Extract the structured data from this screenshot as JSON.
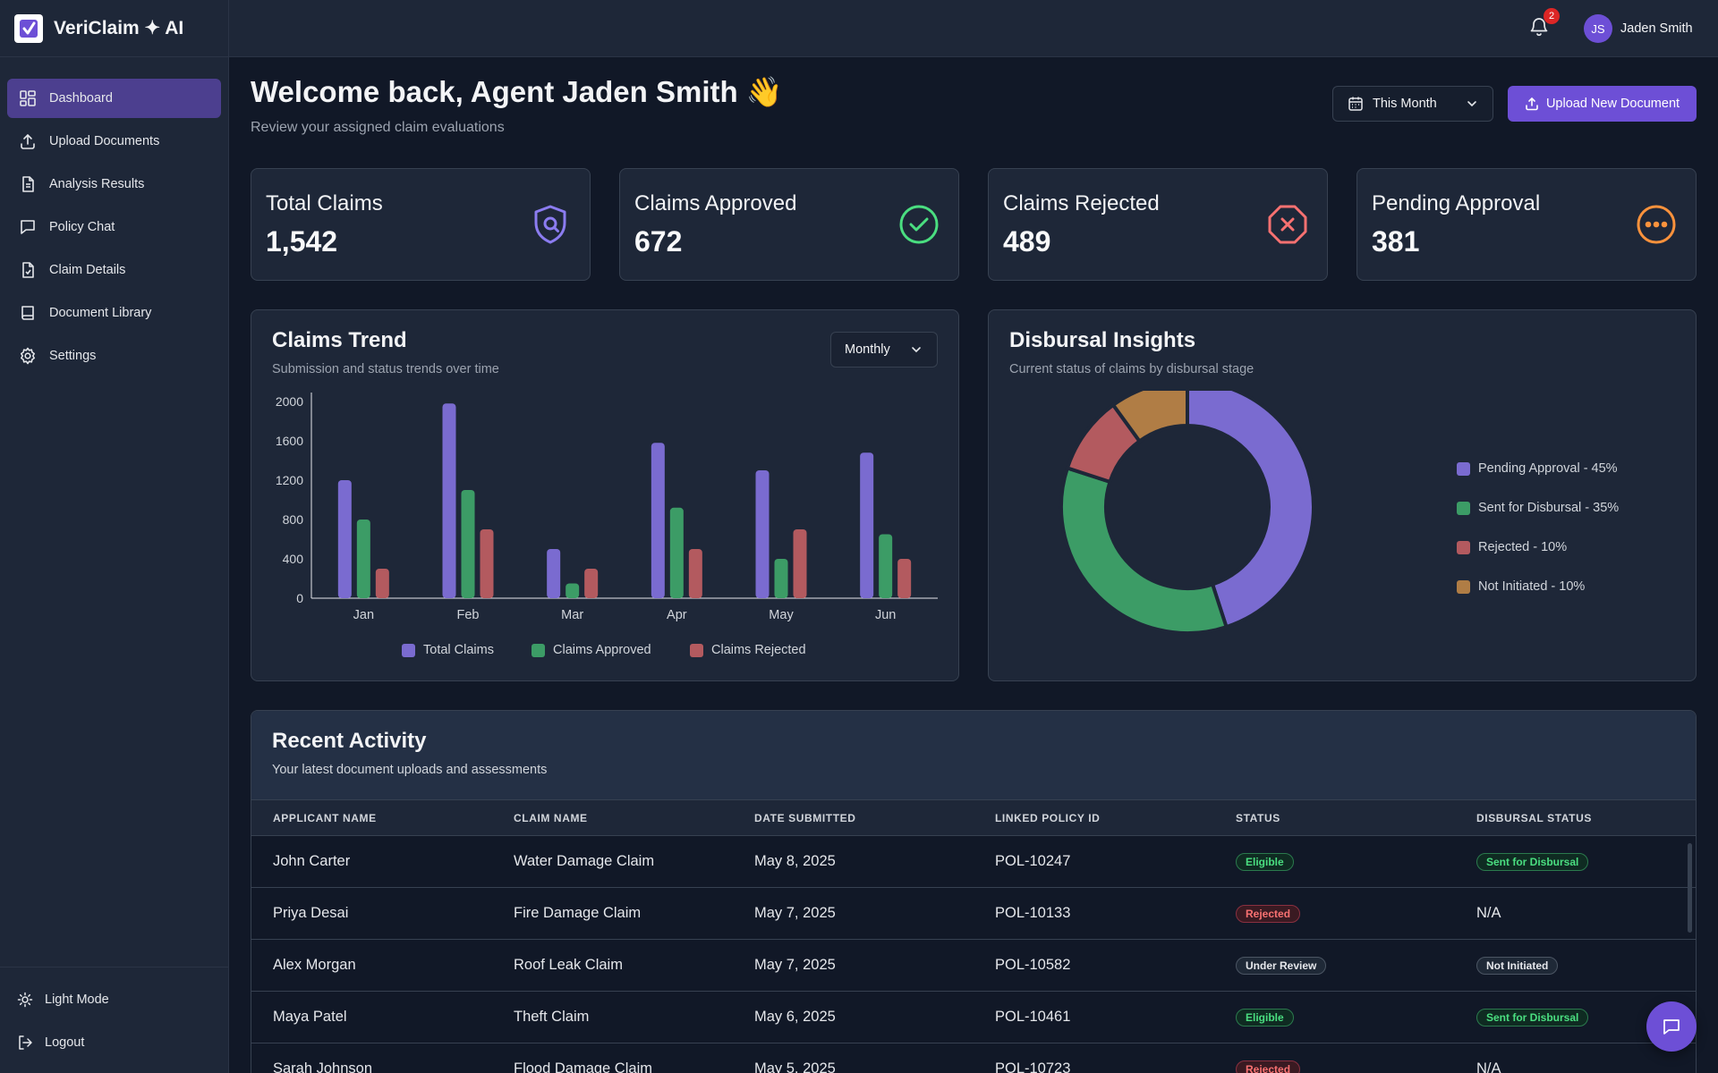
{
  "brand": {
    "name": "VeriClaim ✦ AI"
  },
  "nav": [
    {
      "label": "Dashboard",
      "icon": "dashboard-icon",
      "active": true
    },
    {
      "label": "Upload Documents",
      "icon": "upload-icon"
    },
    {
      "label": "Analysis Results",
      "icon": "document-icon"
    },
    {
      "label": "Policy Chat",
      "icon": "chat-icon"
    },
    {
      "label": "Claim Details",
      "icon": "file-check-icon"
    },
    {
      "label": "Document Library",
      "icon": "book-icon"
    },
    {
      "label": "Settings",
      "icon": "gear-icon"
    }
  ],
  "sidebar_bottom": {
    "light_mode": "Light Mode",
    "logout": "Logout"
  },
  "topbar": {
    "notification_count": "2",
    "user_initials": "JS",
    "user_name": "Jaden Smith"
  },
  "header": {
    "welcome": "Welcome back, Agent Jaden Smith 👋",
    "subtitle": "Review your assigned claim evaluations",
    "period": "This Month",
    "upload_button": "Upload New Document"
  },
  "stats": [
    {
      "label": "Total Claims",
      "value": "1,542",
      "icon": "shield-search-icon",
      "color": "#8b7cf0"
    },
    {
      "label": "Claims Approved",
      "value": "672",
      "icon": "check-circle-icon",
      "color": "#4ade80"
    },
    {
      "label": "Claims Rejected",
      "value": "489",
      "icon": "x-octagon-icon",
      "color": "#f87171"
    },
    {
      "label": "Pending Approval",
      "value": "381",
      "icon": "more-circle-icon",
      "color": "#fb923c"
    }
  ],
  "trend": {
    "title": "Claims Trend",
    "subtitle": "Submission and status trends over time",
    "interval": "Monthly"
  },
  "disbursal": {
    "title": "Disbursal Insights",
    "subtitle": "Current status of claims by disbursal stage"
  },
  "chart_data": [
    {
      "type": "bar",
      "categories": [
        "Jan",
        "Feb",
        "Mar",
        "Apr",
        "May",
        "Jun"
      ],
      "ylim": [
        0,
        2000
      ],
      "yticks": [
        "2000",
        "1600",
        "1200",
        "800",
        "400",
        "0"
      ],
      "series": [
        {
          "name": "Total Claims",
          "color": "#7a6bd0",
          "values": [
            1200,
            1980,
            500,
            1580,
            1300,
            1480
          ]
        },
        {
          "name": "Claims Approved",
          "color": "#3c9c66",
          "values": [
            800,
            1100,
            150,
            920,
            400,
            650
          ]
        },
        {
          "name": "Claims Rejected",
          "color": "#b35a5f",
          "values": [
            300,
            700,
            300,
            500,
            700,
            400
          ]
        }
      ],
      "legend": "bottom"
    },
    {
      "type": "pie",
      "donut": true,
      "slices": [
        {
          "label": "Pending Approval - 45%",
          "value": 45,
          "color": "#7a6bd0"
        },
        {
          "label": "Sent for Disbursal - 35%",
          "value": 35,
          "color": "#3c9c66"
        },
        {
          "label": "Rejected - 10%",
          "value": 10,
          "color": "#b35a5f"
        },
        {
          "label": "Not Initiated - 10%",
          "value": 10,
          "color": "#b07d45"
        }
      ],
      "legend": "right"
    }
  ],
  "activity": {
    "title": "Recent Activity",
    "subtitle": "Your latest document uploads and assessments",
    "columns": [
      "APPLICANT NAME",
      "CLAIM NAME",
      "DATE SUBMITTED",
      "LINKED POLICY ID",
      "STATUS",
      "DISBURSAL STATUS"
    ],
    "rows": [
      {
        "applicant": "John Carter",
        "claim": "Water Damage Claim",
        "date": "May 8, 2025",
        "policy": "POL-10247",
        "status": "Eligible",
        "status_tone": "green",
        "disbursal": "Sent for Disbursal",
        "disbursal_tone": "green"
      },
      {
        "applicant": "Priya Desai",
        "claim": "Fire Damage Claim",
        "date": "May 7, 2025",
        "policy": "POL-10133",
        "status": "Rejected",
        "status_tone": "red",
        "disbursal": "N/A",
        "disbursal_tone": "text"
      },
      {
        "applicant": "Alex Morgan",
        "claim": "Roof Leak Claim",
        "date": "May 7, 2025",
        "policy": "POL-10582",
        "status": "Under Review",
        "status_tone": "gray",
        "disbursal": "Not Initiated",
        "disbursal_tone": "gray"
      },
      {
        "applicant": "Maya Patel",
        "claim": "Theft Claim",
        "date": "May 6, 2025",
        "policy": "POL-10461",
        "status": "Eligible",
        "status_tone": "green",
        "disbursal": "Sent for Disbursal",
        "disbursal_tone": "green"
      },
      {
        "applicant": "Sarah Johnson",
        "claim": "Flood Damage Claim",
        "date": "May 5, 2025",
        "policy": "POL-10723",
        "status": "Rejected",
        "status_tone": "red",
        "disbursal": "N/A",
        "disbursal_tone": "text"
      }
    ]
  }
}
